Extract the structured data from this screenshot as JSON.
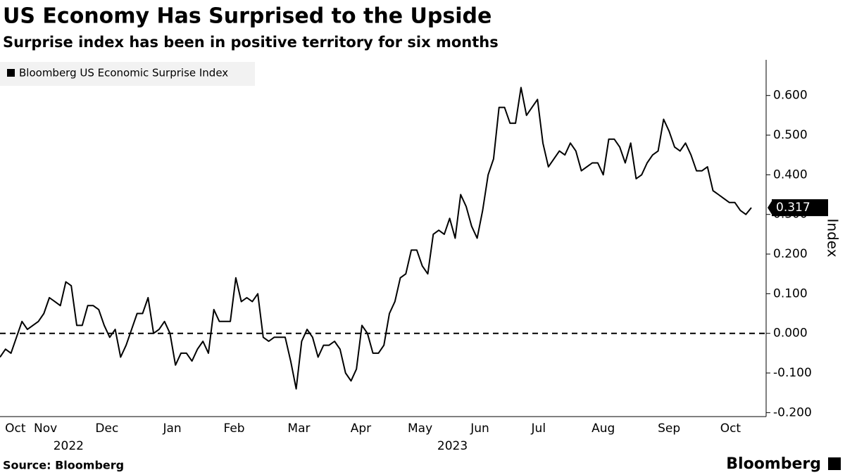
{
  "chart_data": {
    "type": "line",
    "title": "US Economy Has Surprised to the Upside",
    "subtitle": "Surprise index has been in positive territory for six months",
    "ylabel": "Index",
    "source": "Source: Bloomberg",
    "brand": "Bloomberg",
    "legend": "top-left",
    "series": [
      {
        "name": "Bloomberg US Economic Surprise Index",
        "color": "#000000",
        "values": [
          -0.06,
          -0.04,
          -0.05,
          -0.01,
          0.03,
          0.01,
          0.02,
          0.03,
          0.05,
          0.09,
          0.08,
          0.07,
          0.13,
          0.12,
          0.02,
          0.02,
          0.07,
          0.07,
          0.06,
          0.02,
          -0.01,
          0.01,
          -0.06,
          -0.03,
          0.01,
          0.05,
          0.05,
          0.09,
          0.0,
          0.01,
          0.03,
          0.0,
          -0.08,
          -0.05,
          -0.05,
          -0.07,
          -0.04,
          -0.02,
          -0.05,
          0.06,
          0.03,
          0.03,
          0.03,
          0.14,
          0.08,
          0.09,
          0.08,
          0.1,
          -0.01,
          -0.02,
          -0.01,
          -0.01,
          -0.01,
          -0.07,
          -0.14,
          -0.02,
          0.01,
          -0.01,
          -0.06,
          -0.03,
          -0.03,
          -0.02,
          -0.04,
          -0.1,
          -0.12,
          -0.09,
          0.02,
          0.0,
          -0.05,
          -0.05,
          -0.03,
          0.05,
          0.08,
          0.14,
          0.15,
          0.21,
          0.21,
          0.17,
          0.15,
          0.25,
          0.26,
          0.25,
          0.29,
          0.24,
          0.35,
          0.32,
          0.27,
          0.24,
          0.31,
          0.4,
          0.44,
          0.57,
          0.57,
          0.53,
          0.53,
          0.62,
          0.55,
          0.57,
          0.59,
          0.48,
          0.42,
          0.44,
          0.46,
          0.45,
          0.48,
          0.46,
          0.41,
          0.42,
          0.43,
          0.43,
          0.4,
          0.49,
          0.49,
          0.47,
          0.43,
          0.48,
          0.39,
          0.4,
          0.43,
          0.45,
          0.46,
          0.54,
          0.51,
          0.47,
          0.46,
          0.48,
          0.45,
          0.41,
          0.41,
          0.42,
          0.36,
          0.35,
          0.34,
          0.33,
          0.33,
          0.31,
          0.3,
          0.317
        ]
      }
    ],
    "xlim": [
      0,
      137
    ],
    "xticks": [
      {
        "value": 2.8,
        "label": "Oct"
      },
      {
        "value": 8.3,
        "label": "Nov"
      },
      {
        "value": 19.5,
        "label": "Dec"
      },
      {
        "value": 31.4,
        "label": "Jan"
      },
      {
        "value": 42.7,
        "label": "Feb"
      },
      {
        "value": 54.5,
        "label": "Mar"
      },
      {
        "value": 65.8,
        "label": "Apr"
      },
      {
        "value": 76.6,
        "label": "May"
      },
      {
        "value": 87.5,
        "label": "Jun"
      },
      {
        "value": 98.2,
        "label": "Jul"
      },
      {
        "value": 110,
        "label": "Aug"
      },
      {
        "value": 122,
        "label": "Sep"
      },
      {
        "value": 133.2,
        "label": "Oct"
      }
    ],
    "xyears": [
      {
        "value": 12.5,
        "label": "2022"
      },
      {
        "value": 82.5,
        "label": "2023"
      }
    ],
    "ylim": [
      -0.21,
      0.69
    ],
    "yticks": [
      {
        "value": -0.2,
        "label": "-0.200"
      },
      {
        "value": -0.1,
        "label": "-0.100"
      },
      {
        "value": 0,
        "label": "0.000"
      },
      {
        "value": 0.1,
        "label": "0.100"
      },
      {
        "value": 0.2,
        "label": "0.200"
      },
      {
        "value": 0.3,
        "label": "0.300"
      },
      {
        "value": 0.4,
        "label": "0.400"
      },
      {
        "value": 0.5,
        "label": "0.500"
      },
      {
        "value": 0.6,
        "label": "0.600"
      }
    ],
    "zero_line": true
  }
}
